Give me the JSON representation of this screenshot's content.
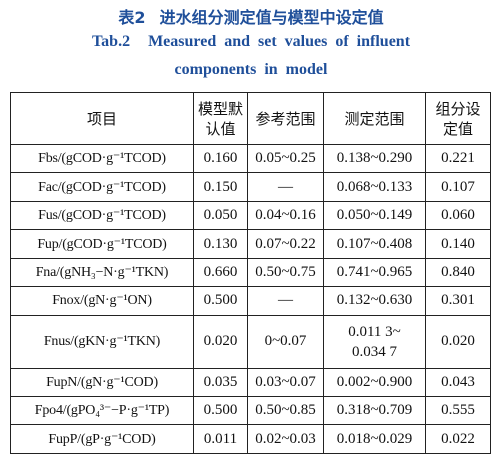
{
  "caption": {
    "zh_number": "表2",
    "zh_title": "进水组分测定值与模型中设定值",
    "en_number": "Tab.2",
    "en_title_line1": "Measured and set values of influent",
    "en_title_line2": "components in model"
  },
  "table": {
    "headers": {
      "item": "项目",
      "default_l1": "模型默",
      "default_l2": "认值",
      "reference": "参考范围",
      "measured": "测定范围",
      "set_l1": "组分设",
      "set_l2": "定值"
    },
    "rows": [
      {
        "item": "Fbs/(gCOD·g⁻¹TCOD)",
        "default": "0.160",
        "reference": "0.05~0.25",
        "measured": "0.138~0.290",
        "set": "0.221"
      },
      {
        "item": "Fac/(gCOD·g⁻¹TCOD)",
        "default": "0.150",
        "reference": "—",
        "measured": "0.068~0.133",
        "set": "0.107"
      },
      {
        "item": "Fus/(gCOD·g⁻¹TCOD)",
        "default": "0.050",
        "reference": "0.04~0.16",
        "measured": "0.050~0.149",
        "set": "0.060"
      },
      {
        "item": "Fup/(gCOD·g⁻¹TCOD)",
        "default": "0.130",
        "reference": "0.07~0.22",
        "measured": "0.107~0.408",
        "set": "0.140"
      },
      {
        "item": "Fna/(gNH₃−N·g⁻¹TKN)",
        "default": "0.660",
        "reference": "0.50~0.75",
        "measured": "0.741~0.965",
        "set": "0.840"
      },
      {
        "item": "Fnox/(gN·g⁻¹ON)",
        "default": "0.500",
        "reference": "—",
        "measured": "0.132~0.630",
        "set": "0.301"
      },
      {
        "item": "Fnus/(gKN·g⁻¹TKN)",
        "default": "0.020",
        "reference": "0~0.07",
        "measured_l1": "0.011 3~",
        "measured_l2": "0.034 7",
        "set": "0.020"
      },
      {
        "item": "FupN/(gN·g⁻¹COD)",
        "default": "0.035",
        "reference": "0.03~0.07",
        "measured": "0.002~0.900",
        "set": "0.043"
      },
      {
        "item": "Fpo4/(gPO₄³⁻−P·g⁻¹TP)",
        "default": "0.500",
        "reference": "0.50~0.85",
        "measured": "0.318~0.709",
        "set": "0.555"
      },
      {
        "item": "FupP/(gP·g⁻¹COD)",
        "default": "0.011",
        "reference": "0.02~0.03",
        "measured": "0.018~0.029",
        "set": "0.022"
      }
    ]
  }
}
